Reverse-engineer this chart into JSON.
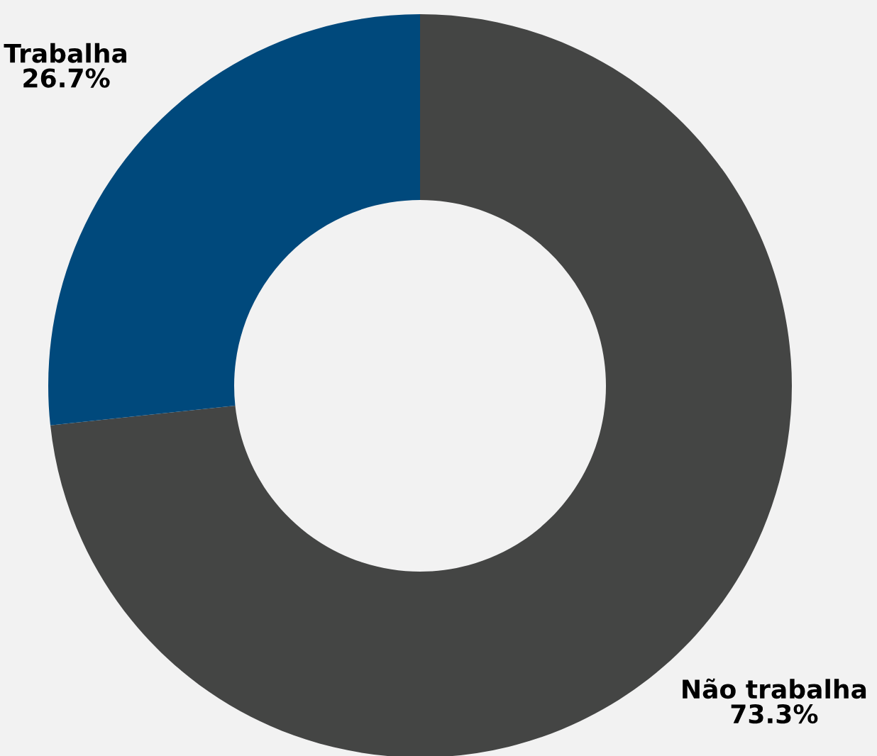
{
  "chart_data": {
    "type": "donut",
    "categories": [
      "Não trabalha",
      "Trabalha"
    ],
    "values": [
      73.3,
      26.7
    ],
    "colors": [
      "#444544",
      "#00497c"
    ],
    "value_labels": [
      "73.3%",
      "26.7%"
    ]
  }
}
